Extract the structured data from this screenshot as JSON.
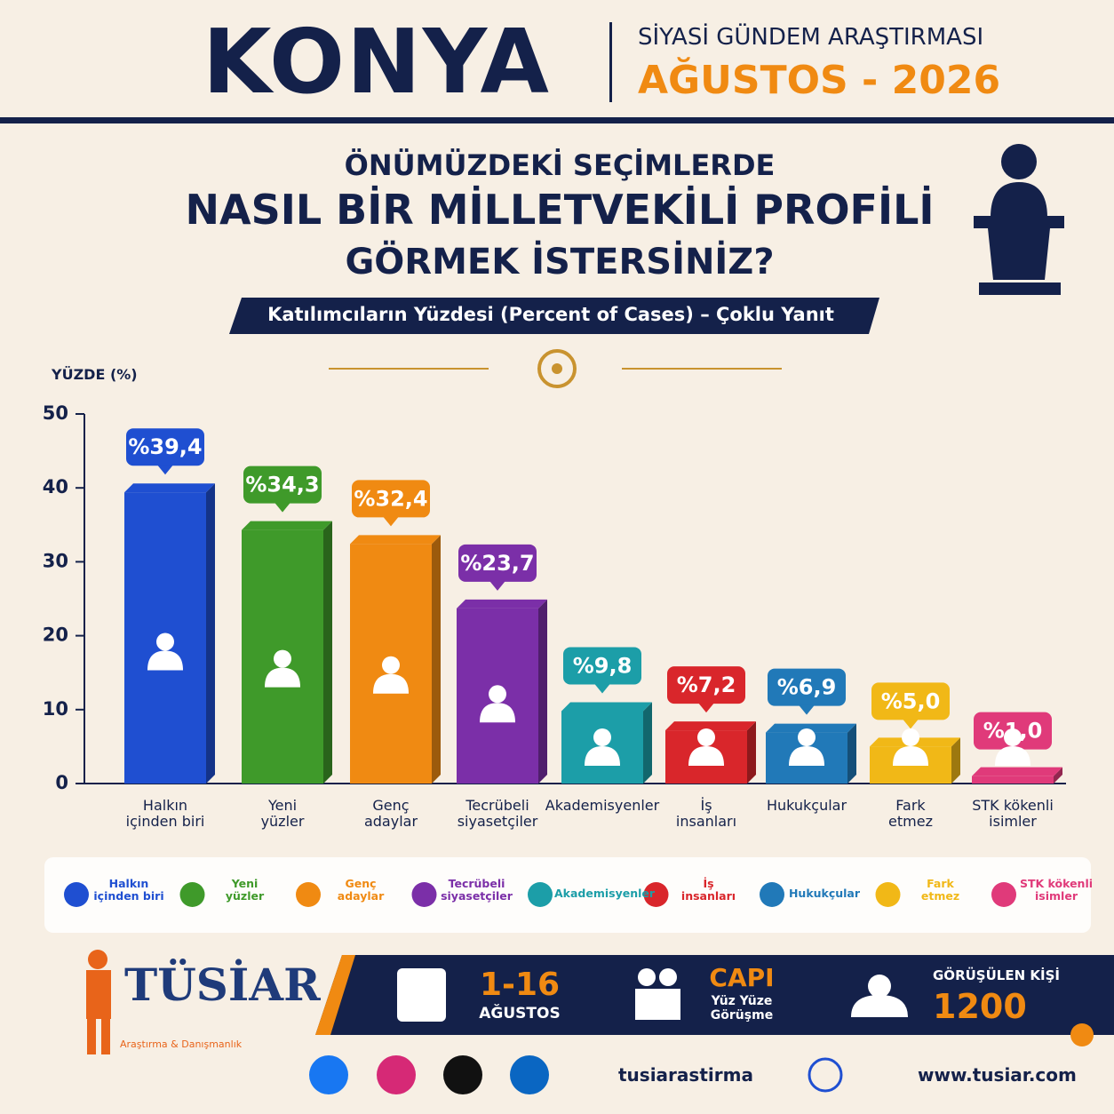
{
  "header": {
    "title": "KONYA",
    "subtitle": "SİYASİ GÜNDEM ARAŞTIRMASI",
    "date": "AĞUSTOS - 2026"
  },
  "chart_data": {
    "type": "bar",
    "title_lines": [
      "ÖNÜMÜZDEKİ SEÇİMLERDE",
      "NASIL BİR MİLLETVEKİLİ PROFİLİ",
      "GÖRMEK İSTERSİNİZ?"
    ],
    "subtitle": "Katılımcıların Yüzdesi (Percent of Cases) – Çoklu Yanıt",
    "y_label": "YÜZDE (%)",
    "categories": [
      "Halkın\niçinden biri",
      "Yeni\nyüzler",
      "Genç\nadaylar",
      "Tecrübeli\nsiyasetçiler",
      "Akademisyenler",
      "İş\ninsanları",
      "Hukukçular",
      "Fark\netmez",
      "STK kökenli\nisimler"
    ],
    "values": [
      39.4,
      34.3,
      32.4,
      23.7,
      9.8,
      7.2,
      6.9,
      5.0,
      1.0
    ],
    "value_labels": [
      "%39,4",
      "%34,3",
      "%32,4",
      "%23,7",
      "%9,8",
      "%7,2",
      "%6,9",
      "%5,0",
      "%1,0"
    ],
    "colors": [
      "#1f4fd1",
      "#3f9a2a",
      "#f08a12",
      "#7b2fa8",
      "#1c9ea8",
      "#d9262b",
      "#2179b8",
      "#f1b817",
      "#e03a7a"
    ],
    "ylim": [
      0,
      50
    ],
    "yticks": [
      0,
      10,
      20,
      30,
      40,
      50
    ],
    "legend": "bottom"
  },
  "footer": {
    "logo": "TÜSİAR",
    "logo_sub": "Araştırma & Danışmanlık",
    "dates": "1-16",
    "month": "AĞUSTOS",
    "method": "CAPI",
    "method_desc": "Yüz Yüze\nGörüşme",
    "sample_label": "GÖRÜŞÜLEN KİŞİ",
    "sample": "1200",
    "social": "tusiarastirma",
    "web": "www.tusiar.com"
  }
}
